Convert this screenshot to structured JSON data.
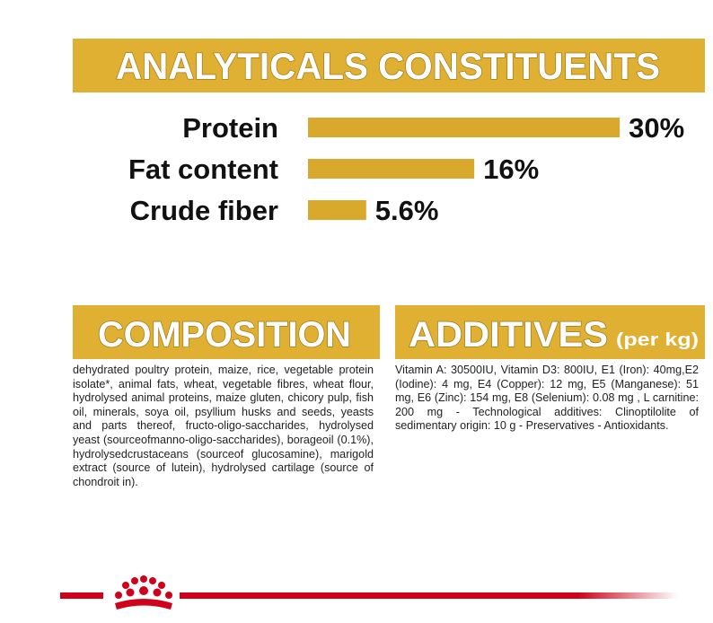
{
  "chart_data": {
    "type": "hbar",
    "title": "ANALYTICALS CONSTITUENTS",
    "categories": [
      "Protein",
      "Fat content",
      "Crude fiber"
    ],
    "values": [
      30,
      16,
      5.6
    ],
    "value_labels": [
      "30%",
      "16%",
      "5.6%"
    ],
    "color": "#d9a92d"
  },
  "composition": {
    "title": "COMPOSITION",
    "text": "dehydrated poultry protein, maize, rice, vegetable protein isolate*, animal fats, wheat, vegetable fibres, wheat flour, hydrolysed animal proteins, maize gluten, chicory pulp, fish oil, minerals, soya oil, psyllium husks and seeds, yeasts and parts thereof, fructo-oligo-saccharides, hydrolysed yeast (sourceofmanno-oligo-saccharides), borageoil (0.1%), hydrolysedcrustaceans (sourceof glucosamine), marigold extract (source of lutein), hydrolysed cartilage (source of chondroit in)."
  },
  "additives": {
    "title": "ADDITIVES",
    "unit": "(per kg)",
    "text": "Vitamin A: 30500IU, Vitamin D3: 800IU, E1 (Iron): 40mg,E2 (Iodine): 4 mg, E4 (Copper): 12 mg, E5 (Manganese): 51 mg, E6 (Zinc): 154 mg, E8 (Selenium): 0.08 mg , L carnitine: 200 mg - Technological additives: Clinoptilolite of sedimentary origin: 10 g - Preservatives - Antioxidants."
  }
}
